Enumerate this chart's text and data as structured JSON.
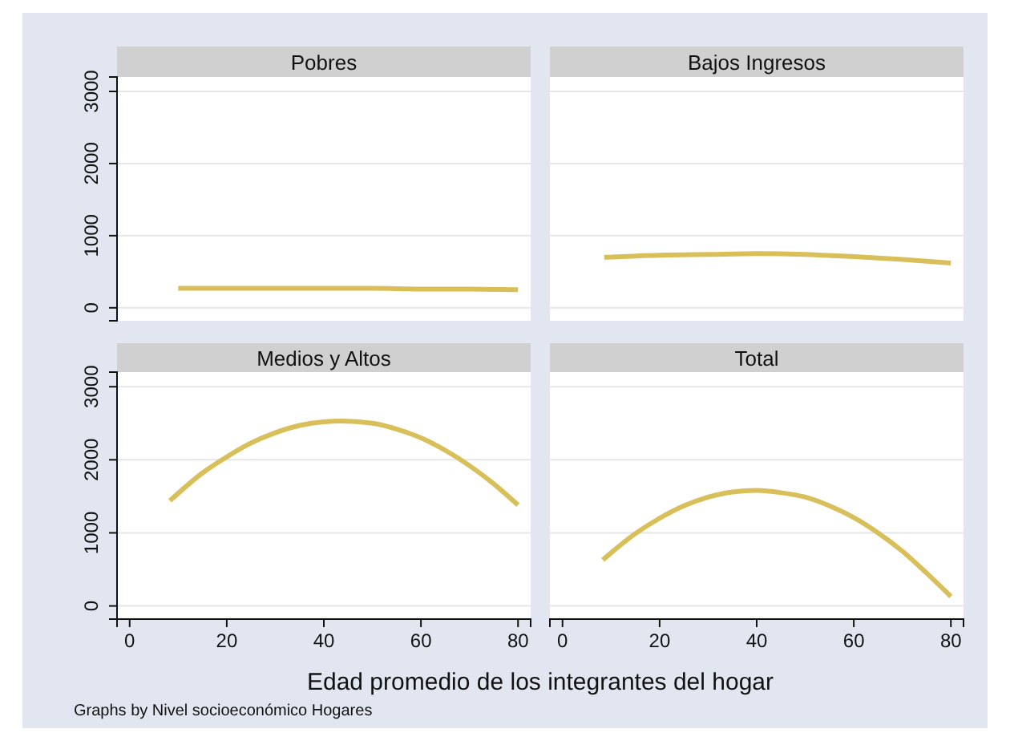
{
  "chart_data": [
    {
      "type": "line",
      "title": "Pobres",
      "x": [
        10,
        20,
        30,
        40,
        50,
        60,
        70,
        80
      ],
      "series": [
        {
          "color": "#d9bf5a",
          "values": [
            270,
            270,
            270,
            270,
            270,
            260,
            260,
            250
          ]
        }
      ],
      "xlim": [
        -2.6,
        82.6
      ],
      "ylim": [
        -180,
        3200
      ],
      "yticks": [
        0,
        1000,
        2000,
        3000
      ],
      "grid": "y",
      "tick_labels": "y"
    },
    {
      "type": "line",
      "title": "Bajos Ingresos",
      "x": [
        8.6,
        20,
        30,
        40,
        50,
        60,
        70,
        80
      ],
      "series": [
        {
          "color": "#d9bf5a",
          "values": [
            700,
            730,
            740,
            750,
            740,
            710,
            670,
            620
          ]
        }
      ],
      "xlim": [
        -2.6,
        82.6
      ],
      "ylim": [
        -180,
        3200
      ],
      "yticks": [
        0,
        1000,
        2000,
        3000
      ],
      "grid": "y",
      "tick_labels": false
    },
    {
      "type": "line",
      "title": "Medios y Altos",
      "x": [
        8.3,
        15,
        20,
        25,
        30,
        35,
        40,
        43.6,
        50,
        55,
        60,
        65,
        70,
        75,
        80
      ],
      "series": [
        {
          "color": "#d9bf5a",
          "values": [
            1440,
            1820,
            2040,
            2230,
            2370,
            2470,
            2520,
            2530,
            2500,
            2420,
            2300,
            2130,
            1920,
            1670,
            1380
          ]
        }
      ],
      "xlim": [
        -2.6,
        82.6
      ],
      "ylim": [
        -180,
        3200
      ],
      "xticks": [
        0,
        20,
        40,
        60,
        80
      ],
      "yticks": [
        0,
        1000,
        2000,
        3000
      ],
      "grid": "y"
    },
    {
      "type": "line",
      "title": "Total",
      "x": [
        8.3,
        15,
        20,
        25,
        30,
        35,
        40,
        45,
        50,
        55,
        60,
        65,
        70,
        75,
        80
      ],
      "series": [
        {
          "color": "#d9bf5a",
          "values": [
            630,
            990,
            1200,
            1370,
            1490,
            1560,
            1580,
            1550,
            1490,
            1370,
            1210,
            1000,
            750,
            450,
            130
          ]
        }
      ],
      "xlim": [
        -2.6,
        82.6
      ],
      "ylim": [
        -180,
        3200
      ],
      "xticks": [
        0,
        20,
        40,
        60,
        80
      ],
      "yticks": [
        0,
        1000,
        2000,
        3000
      ],
      "grid": "y",
      "tick_labels": "x",
      "xlabel": "Edad promedio de los integrantes del hogar",
      "annotations": [
        "Graphs by Nivel socioeconómico Hogares"
      ]
    }
  ]
}
